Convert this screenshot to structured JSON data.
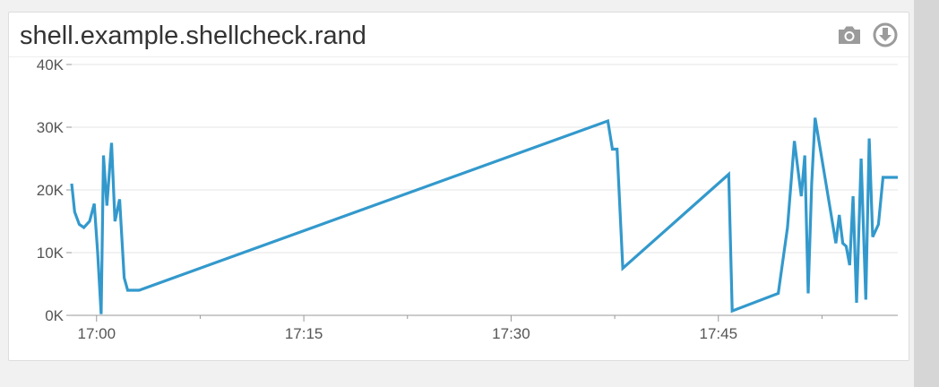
{
  "panel": {
    "title": "shell.example.shellcheck.rand",
    "toolbar": {
      "snapshot_icon": "camera-icon",
      "download_icon": "download-icon"
    }
  },
  "colors": {
    "line": "#3399cc",
    "grid": "#e6e6e6",
    "axis": "#999999",
    "icon": "#9b9b9b"
  },
  "chart_data": {
    "type": "line",
    "title": "shell.example.shellcheck.rand",
    "xlabel": "",
    "ylabel": "",
    "grid": true,
    "legend": "none",
    "x_range": [
      "16:58:12",
      "17:57:59"
    ],
    "ylim": [
      0,
      40000
    ],
    "y_ticks": [
      "0K",
      "10K",
      "20K",
      "30K",
      "40K"
    ],
    "x_ticks": [
      "17:00",
      "17:15",
      "17:30",
      "17:45"
    ],
    "series": [
      {
        "x": [
          "16:58:12",
          "16:58:25",
          "16:58:45",
          "16:59:05",
          "16:59:30",
          "16:59:50",
          "17:00:05",
          "17:00:20",
          "17:00:30",
          "17:00:45",
          "17:01:05",
          "17:01:20",
          "17:01:40",
          "17:02:00",
          "17:02:15",
          "17:02:30",
          "17:02:45",
          "17:03:05",
          "17:37:00",
          "17:37:20",
          "17:37:40",
          "17:38:05",
          "17:45:45",
          "17:46:00",
          "17:49:20",
          "17:50:00",
          "17:50:30",
          "17:51:00",
          "17:51:15",
          "17:51:30",
          "17:51:45",
          "17:52:00",
          "17:53:30",
          "17:53:45",
          "17:54:00",
          "17:54:15",
          "17:54:30",
          "17:54:45",
          "17:55:00",
          "17:55:20",
          "17:55:40",
          "17:55:55",
          "17:56:10",
          "17:56:35",
          "17:56:55",
          "17:57:15",
          "17:57:40",
          "17:57:59"
        ],
        "values": [
          21000,
          16500,
          14500,
          14000,
          15000,
          17800,
          10000,
          200,
          25500,
          17500,
          27500,
          15000,
          18500,
          6000,
          4000,
          4000,
          4000,
          4000,
          31000,
          26500,
          26500,
          7500,
          22500,
          700,
          3500,
          14000,
          27800,
          19000,
          25500,
          3500,
          21000,
          31500,
          11500,
          16000,
          11500,
          11000,
          8000,
          19000,
          2000,
          25000,
          2500,
          28200,
          12500,
          14500,
          22000,
          22000,
          22000,
          22000
        ]
      }
    ]
  }
}
